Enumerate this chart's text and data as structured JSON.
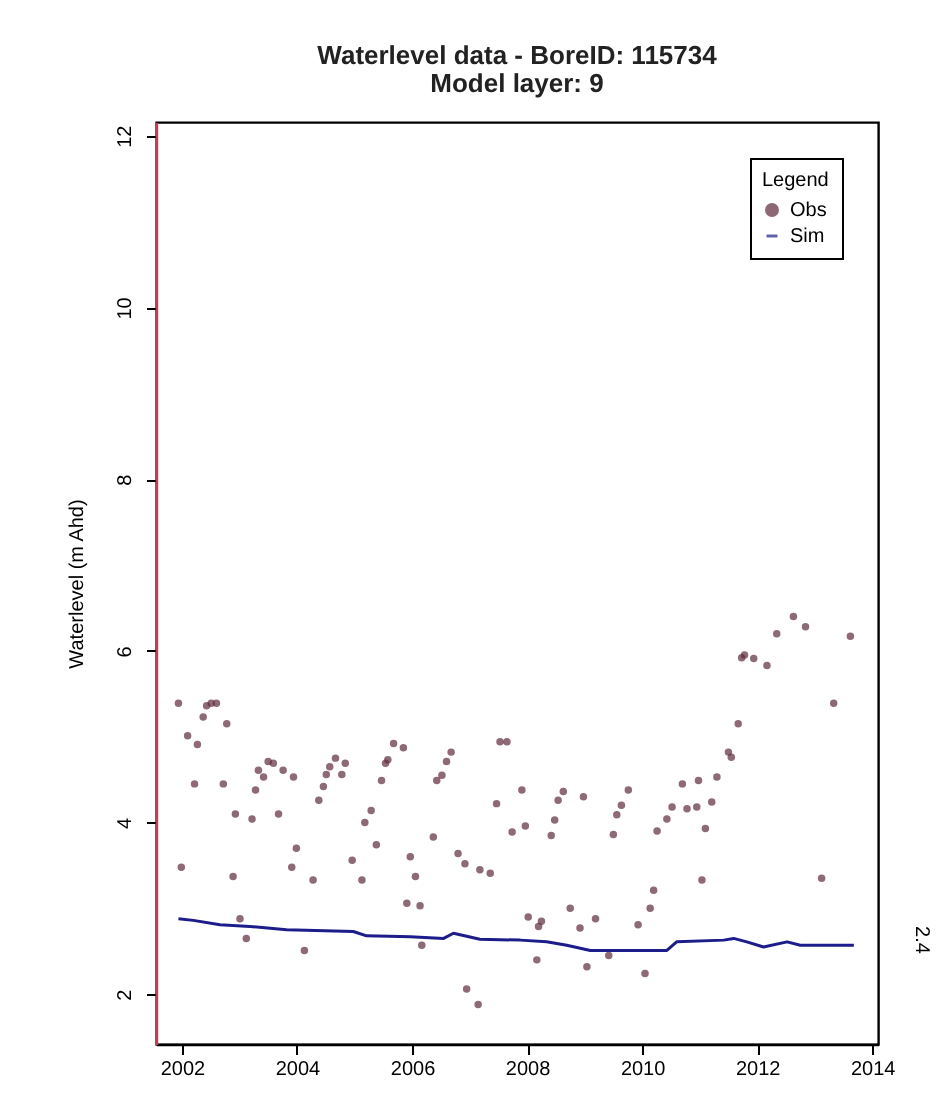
{
  "chart_data": {
    "type": "scatter",
    "title": "Waterlevel data - BoreID:  115734",
    "subtitle": "Model layer: 9",
    "ylabel": "Waterlevel (m Ahd)",
    "xlim": [
      2001.55,
      2014.1
    ],
    "xticks": [
      2002,
      2004,
      2006,
      2008,
      2010,
      2012,
      2014
    ],
    "ylim": [
      1.42,
      12.16
    ],
    "yticks": [
      2,
      4,
      6,
      8,
      10,
      12
    ],
    "grid": false,
    "legend": "top right",
    "legend_title": "Legend",
    "annotations": [
      "2.4"
    ],
    "series": [
      {
        "name": "Obs",
        "marker": "circle",
        "color": "#5e2a3c",
        "x": [
          2001.94,
          2001.99,
          2002.1,
          2002.22,
          2002.27,
          2002.37,
          2002.43,
          2002.51,
          2002.6,
          2002.72,
          2002.78,
          2002.89,
          2002.93,
          2003.01,
          2003.12,
          2003.22,
          2003.28,
          2003.33,
          2003.42,
          2003.5,
          2003.59,
          2003.68,
          2003.76,
          2003.91,
          2003.94,
          2003.99,
          2004.13,
          2004.28,
          2004.38,
          2004.46,
          2004.51,
          2004.57,
          2004.67,
          2004.78,
          2004.84,
          2004.96,
          2005.13,
          2005.18,
          2005.29,
          2005.38,
          2005.47,
          2005.54,
          2005.58,
          2005.68,
          2005.85,
          2005.91,
          2005.97,
          2006.06,
          2006.14,
          2006.17,
          2006.37,
          2006.43,
          2006.52,
          2006.6,
          2006.68,
          2006.8,
          2006.92,
          2006.95,
          2007.15,
          2007.18,
          2007.36,
          2007.47,
          2007.53,
          2007.65,
          2007.74,
          2007.91,
          2007.97,
          2008.02,
          2008.17,
          2008.2,
          2008.25,
          2008.42,
          2008.48,
          2008.54,
          2008.63,
          2008.75,
          2008.92,
          2008.98,
          2009.04,
          2009.19,
          2009.42,
          2009.5,
          2009.56,
          2009.64,
          2009.76,
          2009.93,
          2010.05,
          2010.14,
          2010.2,
          2010.26,
          2010.43,
          2010.52,
          2010.7,
          2010.78,
          2010.95,
          2010.98,
          2011.04,
          2011.1,
          2011.21,
          2011.3,
          2011.5,
          2011.55,
          2011.67,
          2011.73,
          2011.78,
          2011.94,
          2012.17,
          2012.34,
          2012.63,
          2012.84,
          2013.12,
          2013.33,
          2013.62
        ],
        "values": [
          5.39,
          3.48,
          5.01,
          4.45,
          4.91,
          5.23,
          5.36,
          5.39,
          5.39,
          4.45,
          5.15,
          3.37,
          4.1,
          2.88,
          2.65,
          4.04,
          4.38,
          4.61,
          4.53,
          4.71,
          4.69,
          4.1,
          4.61,
          3.48,
          4.53,
          3.7,
          2.51,
          3.33,
          4.26,
          4.42,
          4.56,
          4.65,
          4.75,
          4.56,
          4.69,
          3.56,
          3.33,
          4.0,
          4.14,
          3.74,
          4.49,
          4.69,
          4.73,
          4.92,
          4.87,
          3.06,
          3.6,
          3.37,
          3.03,
          2.57,
          3.83,
          4.49,
          4.55,
          4.71,
          4.82,
          3.64,
          3.52,
          2.06,
          1.88,
          3.45,
          3.41,
          4.22,
          4.94,
          4.94,
          3.89,
          4.38,
          3.96,
          2.9,
          2.4,
          2.79,
          2.85,
          3.85,
          4.03,
          4.26,
          4.36,
          3.0,
          2.77,
          4.3,
          2.32,
          2.88,
          2.45,
          3.86,
          4.09,
          4.2,
          4.38,
          2.81,
          2.24,
          3.0,
          3.21,
          3.9,
          4.04,
          4.18,
          4.45,
          4.16,
          4.18,
          4.49,
          3.33,
          3.93,
          4.24,
          4.53,
          4.82,
          4.76,
          5.15,
          5.92,
          5.95,
          5.91,
          5.83,
          6.2,
          6.4,
          6.28,
          3.35,
          5.39,
          6.17
        ]
      },
      {
        "name": "Sim",
        "type": "line",
        "marker": "none",
        "color": "#1c1c8a",
        "x": [
          2001.94,
          2002.2,
          2002.66,
          2003.18,
          2003.82,
          2004.98,
          2005.21,
          2005.97,
          2006.55,
          2006.72,
          2007.18,
          2007.88,
          2008.34,
          2008.69,
          2009.1,
          2010.43,
          2010.6,
          2011.42,
          2011.59,
          2011.82,
          2012.11,
          2012.52,
          2012.75,
          2013.68
        ],
        "values": [
          2.88,
          2.86,
          2.81,
          2.79,
          2.75,
          2.73,
          2.68,
          2.67,
          2.65,
          2.71,
          2.64,
          2.63,
          2.61,
          2.57,
          2.51,
          2.51,
          2.61,
          2.63,
          2.65,
          2.61,
          2.55,
          2.61,
          2.57,
          2.57
        ]
      }
    ]
  }
}
